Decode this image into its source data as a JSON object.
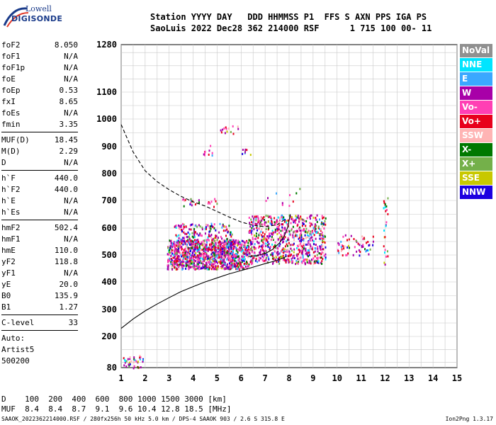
{
  "logo": {
    "line1": "Lowell",
    "line2": "DIGISONDE"
  },
  "header": {
    "line1": "Station YYYY DAY   DDD HHMMSS P1  FFS S AXN PPS IGA PS",
    "line2": "SaoLuis 2022 Dec28 362 214000 RSF      1 715 100 00- 11"
  },
  "params": {
    "group1": [
      {
        "label": "foF2",
        "value": "8.050"
      },
      {
        "label": "foF1",
        "value": "N/A"
      },
      {
        "label": "foF1p",
        "value": "N/A"
      },
      {
        "label": "foE",
        "value": "N/A"
      },
      {
        "label": "foEp",
        "value": "0.53"
      },
      {
        "label": "fxI",
        "value": "8.65"
      },
      {
        "label": "foEs",
        "value": "N/A"
      },
      {
        "label": "fmin",
        "value": "3.35"
      }
    ],
    "group2": [
      {
        "label": "MUF(D)",
        "value": "18.45"
      },
      {
        "label": "M(D)",
        "value": "2.29"
      },
      {
        "label": "D",
        "value": "N/A"
      }
    ],
    "group3": [
      {
        "label": "h`F",
        "value": "440.0"
      },
      {
        "label": "h`F2",
        "value": "440.0"
      },
      {
        "label": "h`E",
        "value": "N/A"
      },
      {
        "label": "h`Es",
        "value": "N/A"
      }
    ],
    "group4": [
      {
        "label": "hmF2",
        "value": "502.4"
      },
      {
        "label": "hmF1",
        "value": "N/A"
      },
      {
        "label": "hmE",
        "value": "110.0"
      },
      {
        "label": "yF2",
        "value": "118.8"
      },
      {
        "label": "yF1",
        "value": "N/A"
      },
      {
        "label": "yE",
        "value": "20.0"
      },
      {
        "label": "B0",
        "value": "135.9"
      },
      {
        "label": "B1",
        "value": "1.27"
      }
    ],
    "clevel": {
      "label": "C-level",
      "value": "33"
    },
    "auto": [
      "Auto:",
      "Artist5",
      "500200"
    ]
  },
  "legend": [
    {
      "label": "NoVal",
      "color": "#909090"
    },
    {
      "label": "NNE",
      "color": "#00e5ff"
    },
    {
      "label": "E",
      "color": "#3aa8ff"
    },
    {
      "label": "W",
      "color": "#a800a8"
    },
    {
      "label": "Vo-",
      "color": "#ff3fb4"
    },
    {
      "label": "Vo+",
      "color": "#e8001c"
    },
    {
      "label": "SSW",
      "color": "#ffb4b4"
    },
    {
      "label": "X-",
      "color": "#007800"
    },
    {
      "label": "X+",
      "color": "#74b04a"
    },
    {
      "label": "SSE",
      "color": "#c8c800"
    },
    {
      "label": "NNW",
      "color": "#1c00e0"
    }
  ],
  "chart_data": {
    "type": "scatter",
    "title": "",
    "xlabel": "",
    "ylabel": "",
    "x_range": [
      1,
      15
    ],
    "y_range": [
      80,
      1280
    ],
    "x_ticks": [
      "1",
      "2",
      "3",
      "4",
      "5",
      "6",
      "7",
      "8",
      "9",
      "10",
      "11",
      "12",
      "13",
      "14",
      "15"
    ],
    "y_ticks": [
      "80",
      "200",
      "300",
      "400",
      "500",
      "600",
      "700",
      "800",
      "900",
      "1000",
      "1100",
      "1280"
    ],
    "grid": true,
    "curves": [
      {
        "style": "dashed",
        "points": [
          [
            1.0,
            980
          ],
          [
            1.5,
            880
          ],
          [
            2.0,
            810
          ],
          [
            2.5,
            770
          ],
          [
            3.0,
            740
          ],
          [
            3.5,
            715
          ],
          [
            4.0,
            695
          ],
          [
            4.5,
            680
          ],
          [
            5.0,
            660
          ],
          [
            5.5,
            640
          ],
          [
            6.0,
            622
          ],
          [
            6.5,
            610
          ],
          [
            7.0,
            605
          ],
          [
            7.5,
            612
          ],
          [
            7.8,
            630
          ]
        ]
      },
      {
        "style": "solid",
        "points": [
          [
            1.0,
            230
          ],
          [
            1.5,
            265
          ],
          [
            2.0,
            295
          ],
          [
            2.5,
            320
          ],
          [
            3.0,
            343
          ],
          [
            3.5,
            365
          ],
          [
            4.0,
            383
          ],
          [
            4.5,
            400
          ],
          [
            5.0,
            415
          ],
          [
            5.5,
            430
          ],
          [
            6.0,
            442
          ],
          [
            6.5,
            455
          ],
          [
            7.0,
            468
          ],
          [
            7.5,
            480
          ],
          [
            7.9,
            495
          ]
        ]
      },
      {
        "style": "solid",
        "points": [
          [
            6.3,
            495
          ],
          [
            6.6,
            497
          ],
          [
            7.0,
            505
          ],
          [
            7.3,
            520
          ],
          [
            7.6,
            545
          ],
          [
            7.8,
            570
          ],
          [
            7.95,
            605
          ],
          [
            8.05,
            650
          ]
        ]
      }
    ],
    "clusters": [
      {
        "x": [
          2.9,
          6.3
        ],
        "y": [
          450,
          560
        ],
        "n": 900
      },
      {
        "x": [
          6.3,
          9.5
        ],
        "y": [
          470,
          650
        ],
        "n": 750
      },
      {
        "x": [
          10.0,
          11.5
        ],
        "y": [
          500,
          580
        ],
        "n": 60
      },
      {
        "x": [
          3.2,
          5.6
        ],
        "y": [
          450,
          620
        ],
        "n": 400
      },
      {
        "x": [
          3.5,
          5.0
        ],
        "y": [
          680,
          710
        ],
        "n": 25
      },
      {
        "x": [
          1.0,
          1.9
        ],
        "y": [
          80,
          130
        ],
        "n": 35
      },
      {
        "x": [
          5.1,
          5.9
        ],
        "y": [
          950,
          990
        ],
        "n": 14
      },
      {
        "x": [
          4.4,
          5.0
        ],
        "y": [
          870,
          910
        ],
        "n": 10
      },
      {
        "x": [
          6.0,
          6.6
        ],
        "y": [
          870,
          900
        ],
        "n": 8
      },
      {
        "x": [
          7.0,
          8.5
        ],
        "y": [
          680,
          760
        ],
        "n": 10
      },
      {
        "x": [
          11.9,
          12.1
        ],
        "y": [
          460,
          720
        ],
        "n": 25
      }
    ]
  },
  "muf_table": {
    "row1": "D    100  200  400  600  800 1000 1500 3000 [km]",
    "row2": "MUF  8.4  8.4  8.7  9.1  9.6 10.4 12.8 18.5 [MHz]"
  },
  "footer": {
    "left": "SAAOK_2022362214000.RSF / 280fx256h 50 kHz 5.0 km / DPS-4 SAAOK 903 / 2.6 S 315.8 E",
    "right": "Ion2Png 1.3.17"
  }
}
